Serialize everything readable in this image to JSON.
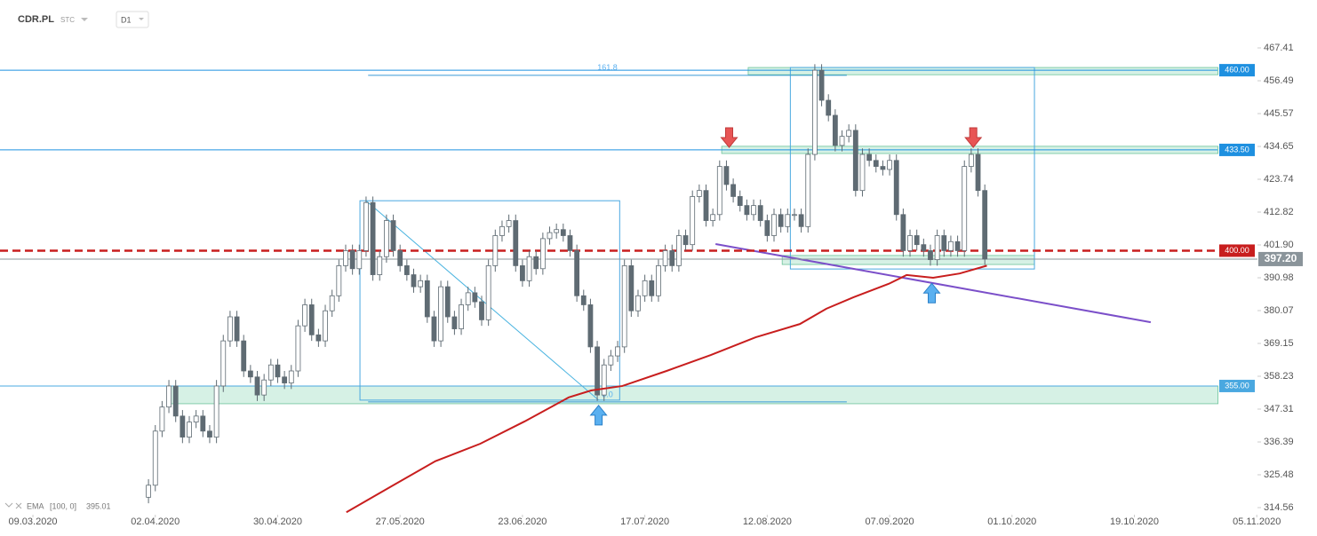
{
  "header": {
    "symbol": "CDR.PL",
    "type": "STC",
    "interval": "D1"
  },
  "chart_data": {
    "type": "candlestick",
    "x": [
      17,
      18,
      19,
      20,
      21,
      22,
      23,
      24,
      25,
      26,
      27,
      28,
      29,
      30,
      31,
      32,
      33,
      34,
      35,
      36,
      37,
      38,
      39,
      40,
      41,
      42,
      43,
      44,
      45,
      46,
      47,
      48,
      49,
      50,
      51,
      52,
      53,
      54,
      55,
      56,
      57,
      58,
      59,
      60,
      61,
      62,
      63,
      64,
      65,
      66,
      67,
      68,
      69,
      70,
      71,
      72,
      73,
      74,
      75,
      76,
      77,
      78,
      79,
      80,
      81,
      82,
      83,
      84,
      85,
      86,
      87,
      88,
      89,
      90,
      91,
      92,
      93,
      94,
      95,
      96,
      97,
      98,
      99,
      100,
      101,
      102,
      103,
      104,
      105,
      106,
      107,
      108,
      109,
      110,
      111,
      112,
      113,
      114,
      115,
      116,
      117,
      118,
      119,
      120,
      121,
      122,
      123,
      124,
      125,
      126,
      127,
      128,
      129,
      130,
      131,
      132,
      133,
      134,
      135,
      136,
      137,
      138,
      139,
      140
    ],
    "open": [
      318,
      322,
      340,
      348,
      355,
      345,
      338,
      343,
      345,
      340,
      338,
      355,
      370,
      378,
      370,
      360,
      358,
      352,
      357,
      362,
      358,
      356,
      360,
      375,
      382,
      372,
      370,
      380,
      385,
      395,
      400,
      394,
      400,
      416,
      392,
      398,
      410,
      400,
      395,
      392,
      388,
      390,
      378,
      370,
      388,
      378,
      374,
      382,
      386,
      383,
      377,
      395,
      405,
      408,
      410,
      395,
      390,
      398,
      394,
      404,
      406,
      407,
      405,
      400,
      385,
      382,
      368,
      352,
      362,
      365,
      368,
      395,
      380,
      385,
      390,
      385,
      395,
      400,
      395,
      405,
      402,
      418,
      420,
      410,
      412,
      428,
      422,
      418,
      415,
      412,
      415,
      410,
      405,
      412,
      408,
      412,
      412,
      408,
      432,
      460,
      450,
      445,
      435,
      438,
      440,
      420,
      432,
      430,
      428,
      427,
      430,
      412,
      400,
      405,
      402,
      400,
      397,
      405,
      400,
      403,
      400,
      428,
      432,
      420
    ],
    "high": [
      324,
      342,
      350,
      357,
      357,
      347,
      345,
      347,
      347,
      342,
      357,
      372,
      380,
      380,
      372,
      362,
      360,
      359,
      364,
      364,
      360,
      362,
      377,
      384,
      384,
      374,
      382,
      387,
      397,
      402,
      402,
      402,
      418,
      418,
      400,
      412,
      412,
      402,
      397,
      394,
      392,
      392,
      380,
      390,
      390,
      380,
      384,
      388,
      388,
      385,
      397,
      407,
      410,
      412,
      412,
      397,
      400,
      400,
      406,
      408,
      409,
      409,
      407,
      402,
      387,
      384,
      370,
      364,
      367,
      370,
      397,
      397,
      387,
      392,
      392,
      397,
      402,
      402,
      407,
      407,
      420,
      422,
      422,
      414,
      430,
      430,
      424,
      420,
      417,
      417,
      417,
      412,
      414,
      414,
      414,
      414,
      414,
      434,
      462,
      462,
      452,
      447,
      440,
      442,
      442,
      434,
      434,
      432,
      430,
      432,
      432,
      414,
      407,
      407,
      404,
      402,
      407,
      407,
      405,
      405,
      430,
      434,
      434,
      422
    ],
    "low": [
      316,
      320,
      338,
      346,
      343,
      336,
      336,
      341,
      338,
      336,
      336,
      353,
      368,
      368,
      358,
      356,
      350,
      350,
      355,
      356,
      354,
      354,
      358,
      373,
      370,
      368,
      368,
      378,
      383,
      393,
      392,
      392,
      398,
      390,
      390,
      396,
      398,
      393,
      390,
      386,
      386,
      376,
      368,
      368,
      376,
      372,
      372,
      380,
      381,
      375,
      375,
      393,
      403,
      406,
      393,
      388,
      388,
      392,
      392,
      402,
      404,
      403,
      398,
      383,
      380,
      366,
      350,
      350,
      360,
      363,
      366,
      378,
      378,
      383,
      383,
      383,
      393,
      393,
      393,
      400,
      400,
      416,
      408,
      408,
      410,
      420,
      416,
      413,
      410,
      410,
      408,
      403,
      403,
      406,
      406,
      410,
      406,
      406,
      430,
      448,
      443,
      433,
      433,
      436,
      418,
      418,
      428,
      426,
      425,
      425,
      410,
      398,
      398,
      400,
      398,
      395,
      395,
      398,
      398,
      398,
      398,
      426,
      418,
      395.2
    ],
    "close": [
      322,
      340,
      348,
      355,
      345,
      338,
      343,
      345,
      340,
      338,
      355,
      370,
      378,
      370,
      360,
      358,
      352,
      357,
      362,
      358,
      356,
      360,
      375,
      382,
      372,
      370,
      380,
      385,
      395,
      400,
      394,
      400,
      416,
      392,
      398,
      410,
      400,
      395,
      392,
      388,
      390,
      378,
      370,
      388,
      378,
      374,
      382,
      386,
      383,
      377,
      395,
      405,
      408,
      410,
      395,
      390,
      398,
      394,
      404,
      406,
      407,
      405,
      400,
      385,
      382,
      368,
      352,
      362,
      365,
      368,
      395,
      380,
      385,
      390,
      385,
      395,
      400,
      395,
      405,
      402,
      418,
      420,
      410,
      412,
      428,
      422,
      418,
      415,
      412,
      415,
      410,
      405,
      412,
      408,
      412,
      412,
      408,
      432,
      460,
      450,
      445,
      435,
      438,
      440,
      420,
      432,
      430,
      428,
      427,
      430,
      412,
      400,
      405,
      402,
      400,
      397,
      405,
      400,
      403,
      400,
      428,
      432,
      420,
      397.2
    ],
    "up_color": "#ffffff",
    "down_color": "#5f6b73",
    "ema": {
      "name": "EMA",
      "params": "[100, 0]",
      "color": "#c81e1e",
      "x": [
        46.1,
        52.7,
        59.2,
        65.8,
        72.3,
        78.8,
        82.1,
        86.7,
        93.2,
        99.7,
        106.3,
        112.8,
        116.7,
        120.7,
        125.9,
        128.5,
        132.4,
        136.3,
        140.3
      ],
      "values": [
        313,
        321.6,
        330,
        335.8,
        343.2,
        351.2,
        353.5,
        355,
        360,
        365.3,
        371.2,
        375.6,
        380.7,
        384.5,
        389,
        391.9,
        391,
        392.4,
        395.01
      ]
    },
    "xlim": [
      -4.84,
      180.1
    ],
    "ylim": [
      314.56,
      467.41
    ],
    "xticks": [
      {
        "value": 0,
        "label": "09.03.2020"
      },
      {
        "value": 18,
        "label": "02.04.2020"
      },
      {
        "value": 36,
        "label": "30.04.2020"
      },
      {
        "value": 54,
        "label": "27.05.2020"
      },
      {
        "value": 72,
        "label": "23.06.2020"
      },
      {
        "value": 90,
        "label": "17.07.2020"
      },
      {
        "value": 108,
        "label": "12.08.2020"
      },
      {
        "value": 126,
        "label": "07.09.2020"
      },
      {
        "value": 144,
        "label": "01.10.2020"
      },
      {
        "value": 162,
        "label": "19.10.2020"
      },
      {
        "value": 180,
        "label": "05.11.2020"
      }
    ],
    "yticks": [
      467.41,
      456.49,
      445.57,
      434.65,
      423.74,
      412.82,
      {
        "value": 401.9,
        "label": "401.90"
      },
      390.98,
      380.07,
      369.15,
      358.23,
      347.31,
      336.39,
      325.48,
      314.56
    ],
    "levels": [
      {
        "value": 460,
        "label": "460.00",
        "color": "#1e90e0",
        "dash": false
      },
      {
        "value": 433.5,
        "label": "433.50",
        "color": "#1e90e0",
        "dash": false
      },
      {
        "value": 400,
        "label": "400.00",
        "color": "#c81e1e",
        "dash": true
      },
      {
        "value": 355,
        "label": "355.00",
        "color": "#4aa8e0",
        "dash": false
      }
    ],
    "last_price": {
      "value": 397.2,
      "label": "397.20",
      "color": "#8a949a"
    },
    "zones": [
      {
        "x0": 105.2,
        "x1": 174.3,
        "low": 458.5,
        "high": 460.9
      },
      {
        "x0": 101.3,
        "x1": 174.3,
        "low": 432.3,
        "high": 434.7
      },
      {
        "x0": 20,
        "x1": 174.3,
        "low": 349.1,
        "high": 355
      },
      {
        "x0": 110.2,
        "x1": 147.3,
        "low": 395.4,
        "high": 398.4
      }
    ],
    "fib": {
      "x0": 49.3,
      "x1": 119.7,
      "levels": [
        {
          "value": 458.3,
          "label": "161.8"
        },
        {
          "value": 349.7,
          "label": "0.0"
        }
      ]
    },
    "boxes": [
      {
        "x0": 48.1,
        "x1": 86.3,
        "low": 350.3,
        "high": 416.6
      },
      {
        "x0": 111.4,
        "x1": 147.3,
        "low": 393.9,
        "high": 460.9
      }
    ],
    "trendlines": [
      {
        "x": [
          49,
          83.2
        ],
        "y": [
          416.6,
          350.3
        ],
        "color": "#4ab4e0"
      },
      {
        "x": [
          100.4,
          164.4
        ],
        "y": [
          402.2,
          376.2
        ],
        "color": "#7b4fc9"
      }
    ],
    "arrows": [
      {
        "x": 102.4,
        "y": 437.6,
        "dir": "down",
        "color": "#e85555"
      },
      {
        "x": 138.3,
        "y": 437.6,
        "dir": "down",
        "color": "#e85555"
      },
      {
        "x": 83.2,
        "y": 345.3,
        "dir": "up",
        "color": "#5ab0f0"
      },
      {
        "x": 132.2,
        "y": 385.9,
        "dir": "up",
        "color": "#5ab0f0"
      }
    ]
  }
}
